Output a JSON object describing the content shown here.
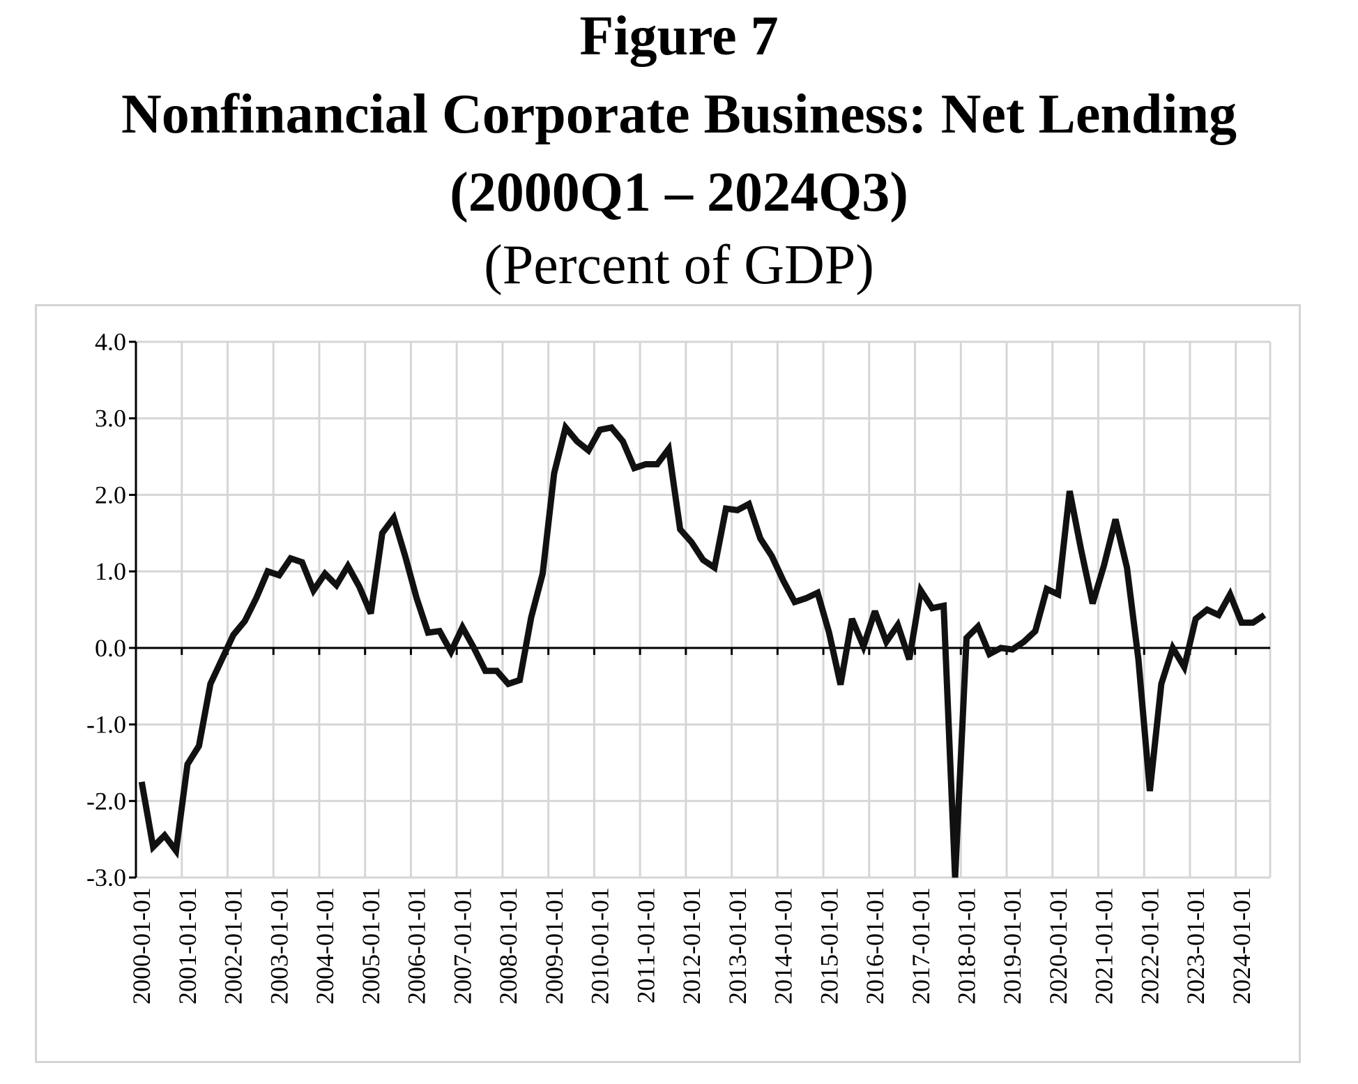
{
  "figure": {
    "label": "Figure 7",
    "title": "Nonfinancial Corporate Business: Net Lending",
    "period": "(2000Q1 – 2024Q3)",
    "unit": "(Percent of GDP)"
  },
  "chart_data": {
    "type": "line",
    "title": "Nonfinancial Corporate Business: Net Lending",
    "xlabel": "",
    "ylabel": "",
    "ylim": [
      -3.0,
      4.0
    ],
    "yticks": [
      "-3.0",
      "-2.0",
      "-1.0",
      "0.0",
      "1.0",
      "2.0",
      "3.0",
      "4.0"
    ],
    "xticks": [
      "2000-01-01",
      "2001-01-01",
      "2002-01-01",
      "2003-01-01",
      "2004-01-01",
      "2005-01-01",
      "2006-01-01",
      "2007-01-01",
      "2008-01-01",
      "2009-01-01",
      "2010-01-01",
      "2011-01-01",
      "2012-01-01",
      "2013-01-01",
      "2014-01-01",
      "2015-01-01",
      "2016-01-01",
      "2017-01-01",
      "2018-01-01",
      "2019-01-01",
      "2020-01-01",
      "2021-01-01",
      "2022-01-01",
      "2023-01-01",
      "2024-01-01"
    ],
    "grid": true,
    "x_start": "2000Q1",
    "x_end": "2024Q3",
    "series": [
      {
        "values": [
          -1.75,
          -2.6,
          -2.45,
          -2.65,
          -1.52,
          -1.28,
          -0.47,
          -0.15,
          0.17,
          0.35,
          0.65,
          1.0,
          0.95,
          1.17,
          1.12,
          0.75,
          0.97,
          0.82,
          1.07,
          0.8,
          0.45,
          1.5,
          1.7,
          1.2,
          0.65,
          0.2,
          0.22,
          -0.05,
          0.27,
          0.0,
          -0.3,
          -0.3,
          -0.47,
          -0.42,
          0.4,
          0.97,
          2.28,
          2.88,
          2.7,
          2.58,
          2.85,
          2.88,
          2.7,
          2.35,
          2.4,
          2.4,
          2.6,
          1.55,
          1.38,
          1.15,
          1.05,
          1.82,
          1.8,
          1.88,
          1.43,
          1.2,
          0.88,
          0.6,
          0.65,
          0.72,
          0.2,
          -0.48,
          0.38,
          0.02,
          0.48,
          0.08,
          0.3,
          -0.15,
          0.75,
          0.52,
          0.55,
          -3.0,
          0.13,
          0.28,
          -0.08,
          0.0,
          -0.02,
          0.08,
          0.22,
          0.77,
          0.7,
          2.05,
          1.28,
          0.58,
          1.08,
          1.68,
          1.05,
          -0.15,
          -1.87,
          -0.47,
          0.0,
          -0.25,
          0.38,
          0.5,
          0.43,
          0.7,
          0.33,
          0.33,
          0.43
        ]
      }
    ]
  }
}
